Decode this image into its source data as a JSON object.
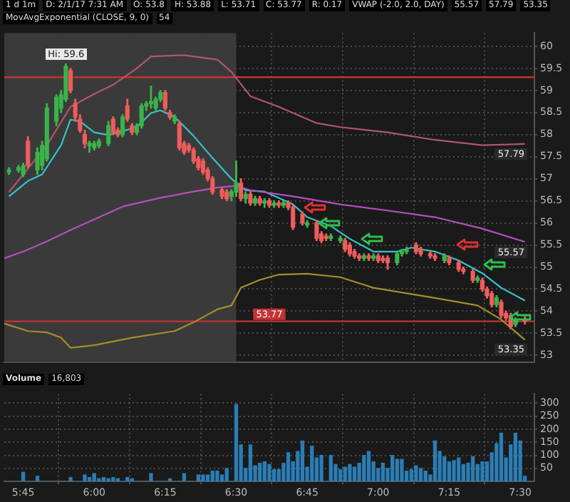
{
  "chart_data": [
    {
      "type": "candlestick",
      "annotations": [
        "1 d 1m",
        "D: 2/1/17 7:31 AM",
        "O: 53.8",
        "H: 53.88",
        "L: 53.71",
        "C: 53.77",
        "R: 0.17",
        "VWAP (-2.0, 2.0, DAY)",
        "55.57",
        "57.79",
        "53.35",
        "MovAvgExponential (CLOSE, 9, 0)",
        "54",
        {
          "text": "Hi: 59.6",
          "x": 5.9,
          "y": 59.6
        }
      ],
      "x": [
        5.7,
        5.7333,
        5.75,
        5.7667,
        5.8,
        5.8167,
        5.8333,
        5.8667,
        5.8833,
        5.9,
        5.9167,
        5.9333,
        5.95,
        5.9667,
        5.9833,
        6,
        6.0167,
        6.05,
        6.0667,
        6.0833,
        6.1,
        6.1167,
        6.1333,
        6.15,
        6.1667,
        6.1833,
        6.2,
        6.2167,
        6.2333,
        6.25,
        6.2667,
        6.2833,
        6.3,
        6.3167,
        6.3333,
        6.35,
        6.3667,
        6.3833,
        6.4,
        6.4167,
        6.45,
        6.4667,
        6.4833,
        6.5,
        6.5167,
        6.5333,
        6.55,
        6.5667,
        6.5833,
        6.6,
        6.6167,
        6.6333,
        6.65,
        6.6667,
        6.6833,
        6.7,
        6.7333,
        6.75,
        6.7833,
        6.8,
        6.8167,
        6.8333,
        6.8667,
        6.8833,
        6.9,
        6.9167,
        6.9333,
        6.95,
        6.9667,
        6.9833,
        7,
        7.0167,
        7.0333,
        7.0667,
        7.0833,
        7.1,
        7.1333,
        7.15,
        7.1833,
        7.2,
        7.2333,
        7.25,
        7.2833,
        7.3,
        7.3333,
        7.35,
        7.3667,
        7.3833,
        7.4,
        7.4167,
        7.4333,
        7.45,
        7.4667,
        7.4833,
        7.5167
      ],
      "ohlc": [
        [
          57.15,
          57.25,
          57.1,
          57.2
        ],
        [
          57.2,
          57.3,
          57.15,
          57.25
        ],
        [
          57.1,
          57.35,
          57.05,
          57.3
        ],
        [
          57.85,
          57.95,
          57.25,
          57.3
        ],
        [
          57.2,
          57.7,
          57.1,
          57.6
        ],
        [
          57.3,
          57.85,
          57.2,
          57.75
        ],
        [
          57.45,
          58.7,
          57.4,
          58.6
        ],
        [
          58.3,
          58.9,
          58.2,
          58.85
        ],
        [
          58.6,
          59.0,
          58.5,
          58.9
        ],
        [
          58.8,
          59.6,
          58.75,
          59.55
        ],
        [
          59.45,
          59.5,
          58.95,
          59.0
        ],
        [
          58.7,
          58.8,
          58.3,
          58.4
        ],
        [
          58.35,
          58.45,
          58.05,
          58.1
        ],
        [
          58.0,
          58.1,
          57.7,
          57.8
        ],
        [
          57.75,
          57.85,
          57.6,
          57.8
        ],
        [
          57.7,
          57.85,
          57.65,
          57.8
        ],
        [
          57.75,
          57.9,
          57.7,
          57.85
        ],
        [
          57.8,
          58.3,
          57.75,
          58.2
        ],
        [
          58.35,
          58.4,
          58.0,
          58.05
        ],
        [
          58.1,
          58.15,
          57.95,
          58.0
        ],
        [
          58.0,
          58.45,
          57.95,
          58.4
        ],
        [
          58.65,
          58.8,
          58.3,
          58.35
        ],
        [
          58.2,
          58.25,
          58.0,
          58.05
        ],
        [
          58.05,
          58.25,
          58.0,
          58.2
        ],
        [
          58.2,
          58.7,
          58.15,
          58.65
        ],
        [
          58.65,
          58.75,
          58.55,
          58.7
        ],
        [
          58.7,
          59.1,
          58.6,
          58.75
        ],
        [
          58.6,
          58.85,
          58.55,
          58.8
        ],
        [
          58.8,
          59.0,
          58.75,
          58.95
        ],
        [
          58.95,
          59.0,
          58.55,
          58.6
        ],
        [
          58.5,
          58.55,
          58.35,
          58.4
        ],
        [
          58.3,
          58.45,
          58.25,
          58.4
        ],
        [
          58.25,
          58.3,
          57.65,
          57.7
        ],
        [
          57.8,
          57.85,
          57.55,
          57.6
        ],
        [
          57.75,
          57.8,
          57.6,
          57.65
        ],
        [
          57.65,
          57.7,
          57.35,
          57.4
        ],
        [
          57.45,
          57.5,
          57.2,
          57.25
        ],
        [
          57.4,
          57.45,
          57.1,
          57.15
        ],
        [
          57.2,
          57.25,
          56.95,
          57.0
        ],
        [
          57.0,
          57.05,
          56.65,
          56.7
        ],
        [
          56.75,
          56.8,
          56.55,
          56.6
        ],
        [
          56.7,
          56.75,
          56.5,
          56.55
        ],
        [
          56.6,
          56.75,
          56.5,
          56.7
        ],
        [
          56.7,
          57.4,
          56.6,
          56.9
        ],
        [
          56.9,
          57.0,
          56.5,
          56.55
        ],
        [
          56.55,
          56.7,
          56.45,
          56.65
        ],
        [
          56.65,
          56.7,
          56.4,
          56.45
        ],
        [
          56.45,
          56.6,
          56.4,
          56.55
        ],
        [
          56.55,
          56.6,
          56.4,
          56.45
        ],
        [
          56.45,
          56.55,
          56.35,
          56.5
        ],
        [
          56.5,
          56.55,
          56.35,
          56.4
        ],
        [
          56.4,
          56.5,
          56.35,
          56.45
        ],
        [
          56.45,
          56.5,
          56.35,
          56.4
        ],
        [
          56.4,
          56.5,
          56.35,
          56.45
        ],
        [
          56.45,
          56.5,
          56.3,
          56.35
        ],
        [
          56.35,
          56.4,
          55.85,
          55.9
        ],
        [
          56.2,
          56.25,
          55.95,
          56.0
        ],
        [
          55.95,
          56.05,
          55.9,
          56.0
        ],
        [
          56.0,
          56.05,
          55.6,
          55.65
        ],
        [
          55.75,
          55.8,
          55.55,
          55.6
        ],
        [
          55.7,
          55.75,
          55.6,
          55.65
        ],
        [
          55.65,
          55.75,
          55.6,
          55.7
        ],
        [
          55.6,
          55.7,
          55.55,
          55.65
        ],
        [
          55.6,
          55.65,
          55.35,
          55.4
        ],
        [
          55.5,
          55.55,
          55.25,
          55.3
        ],
        [
          55.35,
          55.4,
          55.2,
          55.25
        ],
        [
          55.25,
          55.3,
          55.15,
          55.2
        ],
        [
          55.2,
          55.3,
          55.15,
          55.25
        ],
        [
          55.25,
          55.3,
          55.15,
          55.2
        ],
        [
          55.2,
          55.3,
          55.15,
          55.25
        ],
        [
          55.25,
          55.3,
          55.1,
          55.15
        ],
        [
          55.2,
          55.25,
          55.1,
          55.15
        ],
        [
          55.2,
          55.25,
          54.95,
          55.1
        ],
        [
          55.1,
          55.35,
          55.05,
          55.3
        ],
        [
          55.3,
          55.4,
          55.25,
          55.35
        ],
        [
          55.35,
          55.45,
          55.3,
          55.4
        ],
        [
          55.5,
          55.55,
          55.3,
          55.35
        ],
        [
          55.4,
          55.45,
          55.25,
          55.3
        ],
        [
          55.3,
          55.35,
          55.2,
          55.25
        ],
        [
          55.25,
          55.3,
          55.15,
          55.2
        ],
        [
          55.15,
          55.3,
          55.1,
          55.25
        ],
        [
          55.2,
          55.25,
          55.05,
          55.1
        ],
        [
          55.1,
          55.15,
          54.9,
          54.95
        ],
        [
          54.95,
          55.0,
          54.85,
          54.9
        ],
        [
          54.9,
          54.95,
          54.65,
          54.7
        ],
        [
          54.7,
          54.8,
          54.65,
          54.75
        ],
        [
          54.7,
          54.75,
          54.45,
          54.5
        ],
        [
          54.5,
          54.55,
          54.3,
          54.35
        ],
        [
          54.4,
          54.45,
          54.1,
          54.15
        ],
        [
          54.15,
          54.35,
          54.1,
          54.3
        ],
        [
          54.2,
          54.25,
          53.85,
          53.9
        ],
        [
          53.95,
          54.0,
          53.8,
          53.85
        ],
        [
          53.9,
          53.95,
          53.6,
          53.65
        ],
        [
          53.7,
          53.85,
          53.65,
          53.8
        ],
        [
          53.8,
          53.88,
          53.71,
          53.77
        ]
      ],
      "series": [
        {
          "type": "line",
          "color": "#b0566e",
          "x": [
            5.7,
            5.8333,
            5.9167,
            6,
            6.0667,
            6.15,
            6.2,
            6.3167,
            6.4333,
            6.4833,
            6.55,
            6.65,
            6.7833,
            6.8667,
            7.0333,
            7.2,
            7.3667,
            7.5167
          ],
          "values": [
            56.7,
            57.76,
            58.63,
            58.92,
            59.13,
            59.5,
            59.77,
            59.8,
            59.7,
            59.42,
            58.87,
            58.63,
            58.26,
            58.17,
            58.05,
            57.88,
            57.76,
            57.79
          ],
          "value_labels": [
            null,
            null,
            null,
            null,
            null,
            null,
            null,
            null,
            null,
            null,
            null,
            null,
            null,
            null,
            null,
            null,
            null,
            "57.79"
          ]
        },
        {
          "type": "line",
          "color": "#b44fc0",
          "x": [
            5.6833,
            5.75,
            5.8333,
            5.9167,
            6,
            6.1,
            6.2333,
            6.35,
            6.4333,
            6.5,
            6.55,
            6.7,
            6.8667,
            7.0333,
            7.2,
            7.3667,
            7.5167
          ],
          "values": [
            55.2,
            55.35,
            55.58,
            55.84,
            56.08,
            56.37,
            56.57,
            56.71,
            56.8,
            56.84,
            56.74,
            56.6,
            56.42,
            56.28,
            56.13,
            55.87,
            55.57
          ],
          "value_labels": [
            null,
            null,
            null,
            null,
            null,
            null,
            null,
            null,
            null,
            null,
            null,
            null,
            null,
            null,
            null,
            null,
            "55.57"
          ]
        },
        {
          "type": "line",
          "color": "#a48d2c",
          "x": [
            5.6833,
            5.7667,
            5.8333,
            5.8833,
            5.9167,
            6,
            6.1333,
            6.2833,
            6.35,
            6.4333,
            6.4833,
            6.5167,
            6.5833,
            6.65,
            6.75,
            6.8667,
            6.9833,
            7.2,
            7.35,
            7.4333,
            7.5167
          ],
          "values": [
            53.72,
            53.55,
            53.52,
            53.4,
            53.17,
            53.23,
            53.4,
            53.55,
            53.75,
            54.04,
            54.13,
            54.53,
            54.71,
            54.83,
            54.85,
            54.77,
            54.53,
            54.3,
            54.13,
            53.81,
            53.35
          ],
          "value_labels": [
            null,
            null,
            null,
            null,
            null,
            null,
            null,
            null,
            null,
            null,
            null,
            null,
            null,
            null,
            null,
            null,
            null,
            null,
            null,
            null,
            "53.35"
          ]
        },
        {
          "type": "line",
          "color": "#33c4c8",
          "x": [
            5.7,
            5.7667,
            5.8167,
            5.8833,
            5.9167,
            5.95,
            6,
            6.05,
            6.1,
            6.15,
            6.2,
            6.2333,
            6.2833,
            6.35,
            6.4167,
            6.4833,
            6.5333,
            6.6,
            6.7,
            6.75,
            6.8333,
            6.9,
            6.9833,
            7.0667,
            7.1167,
            7.2,
            7.2833,
            7.3667,
            7.4333,
            7.5167
          ],
          "values": [
            56.6,
            56.95,
            57.1,
            57.76,
            58.34,
            58.3,
            58.05,
            57.99,
            58.08,
            58.17,
            58.49,
            58.55,
            58.4,
            57.97,
            57.47,
            57.0,
            56.74,
            56.71,
            56.42,
            56.13,
            55.93,
            55.64,
            55.35,
            55.35,
            55.44,
            55.35,
            55.15,
            54.86,
            54.53,
            54.24
          ]
        }
      ],
      "ref_lines": [
        {
          "axis": "y",
          "value": 59.3,
          "color": "#c43232"
        },
        {
          "axis": "y",
          "value": 53.77,
          "label": "53.77",
          "color": "#c43232"
        }
      ],
      "bands": [
        {
          "axis": "x",
          "from": 5.6833,
          "to": 6.5,
          "color": "#3a3a3a"
        }
      ],
      "xlim": [
        5.6833,
        7.55
      ],
      "xticks": [
        5.75,
        6,
        6.25,
        6.5,
        6.75,
        7,
        7.25,
        7.5
      ],
      "ylim": [
        52.85,
        60.3
      ],
      "yticks": [
        53,
        53.5,
        54,
        54.5,
        55,
        55.5,
        56,
        56.5,
        57,
        57.5,
        58,
        58.5,
        59,
        59.5,
        60
      ],
      "grid": true,
      "tick_labels": "y"
    },
    {
      "type": "bar",
      "title": "Volume",
      "annotations": [
        "16,803"
      ],
      "color": "#2b7db5",
      "x": [
        5.75,
        5.8,
        5.9167,
        5.9667,
        5.9833,
        6,
        6.0167,
        6.0333,
        6.05,
        6.0667,
        6.0833,
        6.1167,
        6.1333,
        6.2,
        6.2667,
        6.3167,
        6.3667,
        6.3833,
        6.4,
        6.4167,
        6.4333,
        6.45,
        6.4667,
        6.5,
        6.5167,
        6.5333,
        6.55,
        6.5667,
        6.5833,
        6.6,
        6.6167,
        6.6333,
        6.65,
        6.6667,
        6.6833,
        6.7,
        6.7167,
        6.7333,
        6.75,
        6.7667,
        6.7833,
        6.8,
        6.8333,
        6.85,
        6.8667,
        6.8833,
        6.9,
        6.9167,
        6.9333,
        6.95,
        6.9667,
        6.9833,
        7,
        7.0167,
        7.0333,
        7.05,
        7.0667,
        7.0833,
        7.1,
        7.1167,
        7.1333,
        7.15,
        7.1667,
        7.1833,
        7.2,
        7.2167,
        7.2333,
        7.25,
        7.2667,
        7.2833,
        7.3,
        7.3167,
        7.3333,
        7.35,
        7.3667,
        7.3833,
        7.4,
        7.4167,
        7.4333,
        7.45,
        7.4667,
        7.4833,
        7.5,
        7.5167
      ],
      "values": [
        35,
        20,
        15,
        25,
        15,
        30,
        10,
        15,
        10,
        15,
        10,
        15,
        10,
        30,
        10,
        30,
        25,
        25,
        25,
        40,
        40,
        25,
        50,
        295,
        140,
        50,
        140,
        60,
        70,
        75,
        65,
        45,
        45,
        70,
        110,
        75,
        115,
        155,
        55,
        135,
        90,
        100,
        100,
        65,
        45,
        55,
        65,
        55,
        70,
        100,
        115,
        75,
        50,
        70,
        50,
        100,
        85,
        85,
        40,
        45,
        60,
        50,
        40,
        25,
        155,
        115,
        95,
        75,
        80,
        90,
        65,
        70,
        95,
        65,
        75,
        75,
        110,
        145,
        185,
        90,
        140,
        185,
        155,
        20
      ],
      "xlim": [
        5.6833,
        7.55
      ],
      "xticks": [
        {
          "value": 5.75,
          "label": "5:45"
        },
        {
          "value": 6,
          "label": "6:00"
        },
        {
          "value": 6.25,
          "label": "6:15"
        },
        {
          "value": 6.5,
          "label": "6:30"
        },
        {
          "value": 6.75,
          "label": "6:45"
        },
        {
          "value": 7,
          "label": "7:00"
        },
        {
          "value": 7.25,
          "label": "7:15"
        },
        {
          "value": 7.5,
          "label": "7:30"
        }
      ],
      "ylim": [
        0,
        335
      ],
      "yticks": [
        50,
        100,
        150,
        200,
        250,
        300
      ],
      "grid": true
    }
  ]
}
